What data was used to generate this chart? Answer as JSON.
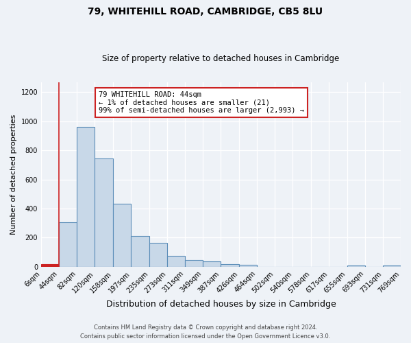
{
  "title": "79, WHITEHILL ROAD, CAMBRIDGE, CB5 8LU",
  "subtitle": "Size of property relative to detached houses in Cambridge",
  "xlabel": "Distribution of detached houses by size in Cambridge",
  "ylabel": "Number of detached properties",
  "bar_color": "#c8d8e8",
  "bar_edge_color": "#5b8db8",
  "highlight_color": "#cc2222",
  "bin_edges": [
    6,
    44,
    82,
    120,
    158,
    197,
    235,
    273,
    311,
    349,
    387,
    426,
    464,
    502,
    540,
    578,
    617,
    655,
    693,
    731,
    769
  ],
  "bin_labels": [
    "6sqm",
    "44sqm",
    "82sqm",
    "120sqm",
    "158sqm",
    "197sqm",
    "235sqm",
    "273sqm",
    "311sqm",
    "349sqm",
    "387sqm",
    "426sqm",
    "464sqm",
    "502sqm",
    "540sqm",
    "578sqm",
    "617sqm",
    "655sqm",
    "693sqm",
    "731sqm",
    "769sqm"
  ],
  "bar_heights": [
    20,
    305,
    960,
    745,
    435,
    210,
    165,
    75,
    48,
    35,
    18,
    15,
    0,
    0,
    0,
    0,
    0,
    10,
    0,
    10
  ],
  "ylim": [
    0,
    1270
  ],
  "yticks": [
    0,
    200,
    400,
    600,
    800,
    1000,
    1200
  ],
  "annotation_text_line1": "79 WHITEHILL ROAD: 44sqm",
  "annotation_text_line2": "← 1% of detached houses are smaller (21)",
  "annotation_text_line3": "99% of semi-detached houses are larger (2,993) →",
  "footer_line1": "Contains HM Land Registry data © Crown copyright and database right 2024.",
  "footer_line2": "Contains public sector information licensed under the Open Government Licence v3.0.",
  "highlight_vline_x": 44,
  "background_color": "#eef2f7",
  "plot_background_color": "#eef2f7"
}
